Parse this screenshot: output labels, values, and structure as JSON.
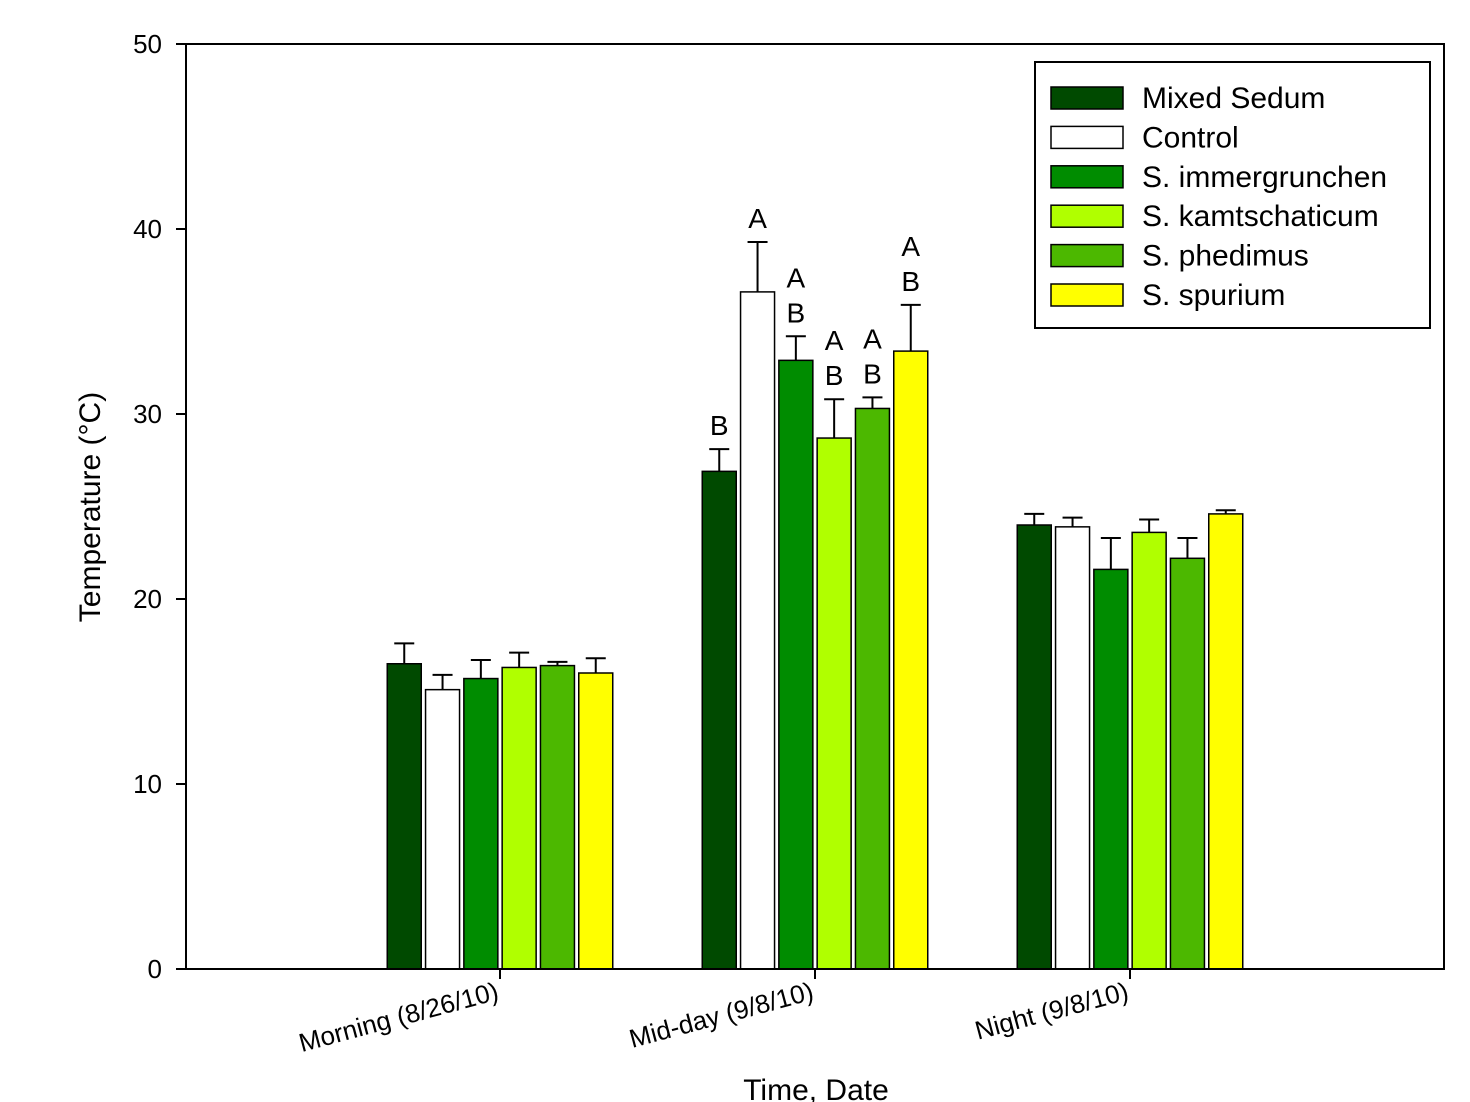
{
  "chart_data": {
    "type": "bar",
    "xlabel": "Time, Date",
    "ylabel": "Temperature (°C)",
    "ylim": [
      0,
      50
    ],
    "yticks": [
      0,
      10,
      20,
      30,
      40,
      50
    ],
    "grid": false,
    "legend_position": "top-right",
    "categories": [
      "Morning (8/26/10)",
      "Mid-day (9/8/10)",
      "Night (9/8/10)"
    ],
    "series": [
      {
        "name": "Mixed Sedum",
        "color": "#004a00",
        "values": [
          16.5,
          26.9,
          24.0
        ],
        "errors": [
          1.1,
          1.2,
          0.6
        ],
        "sig": [
          "",
          "B",
          ""
        ]
      },
      {
        "name": "Control",
        "color": "#ffffff",
        "values": [
          15.1,
          36.6,
          23.9
        ],
        "errors": [
          0.8,
          2.7,
          0.5
        ],
        "sig": [
          "",
          "A",
          ""
        ]
      },
      {
        "name": "S. immergrunchen",
        "color": "#008c00",
        "values": [
          15.7,
          32.9,
          21.6
        ],
        "errors": [
          1.0,
          1.3,
          1.7
        ],
        "sig": [
          "",
          "AB",
          ""
        ]
      },
      {
        "name": "S. kamtschaticum",
        "color": "#b0ff00",
        "values": [
          16.3,
          28.7,
          23.6
        ],
        "errors": [
          0.8,
          2.1,
          0.7
        ],
        "sig": [
          "",
          "AB",
          ""
        ]
      },
      {
        "name": "S. phedimus",
        "color": "#4cb800",
        "values": [
          16.4,
          30.3,
          22.2
        ],
        "errors": [
          0.2,
          0.6,
          1.1
        ],
        "sig": [
          "",
          "AB",
          ""
        ]
      },
      {
        "name": "S. spurium",
        "color": "#ffff00",
        "values": [
          16.0,
          33.4,
          24.6
        ],
        "errors": [
          0.8,
          2.5,
          0.2
        ],
        "sig": [
          "",
          "AB",
          ""
        ]
      }
    ]
  }
}
